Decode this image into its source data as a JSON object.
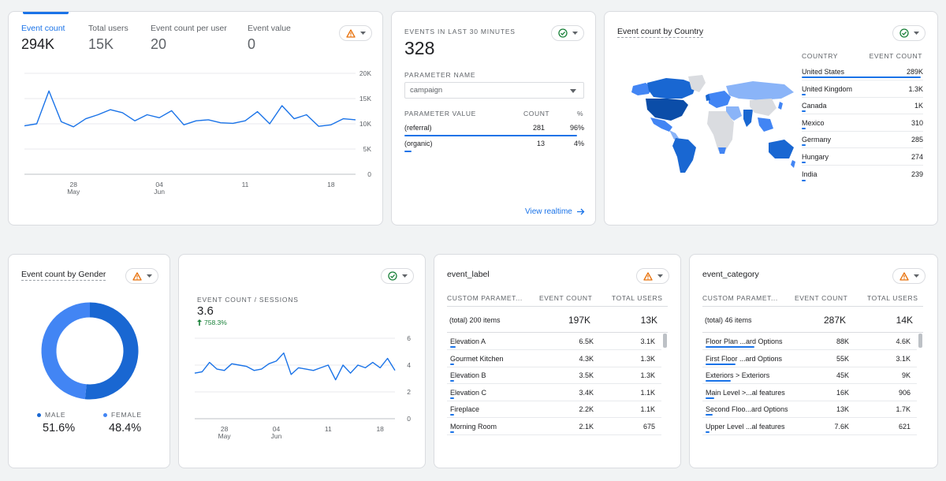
{
  "colors": {
    "accent": "#1a73e8",
    "warning": "#e8710a",
    "ok": "#188038",
    "map_dark": "#1967d2",
    "map_mid": "#4285f4",
    "map_light": "#8ab4f8",
    "map_none": "#dadce0"
  },
  "event_card": {
    "metrics": [
      {
        "label": "Event count",
        "value": "294K"
      },
      {
        "label": "Total users",
        "value": "15K"
      },
      {
        "label": "Event count per user",
        "value": "20"
      },
      {
        "label": "Event value",
        "value": "0"
      }
    ],
    "status_icon": "warning-icon",
    "chart_data": {
      "type": "line",
      "y_ticks": [
        "20K",
        "15K",
        "10K",
        "5K",
        "0"
      ],
      "x_ticks": [
        {
          "day": "28",
          "month": "May"
        },
        {
          "day": "04",
          "month": "Jun"
        },
        {
          "day": "11",
          "month": ""
        },
        {
          "day": "18",
          "month": ""
        }
      ],
      "ylim": [
        0,
        20000
      ],
      "series": [
        {
          "values": [
            9600,
            10000,
            16500,
            10400,
            9400,
            11000,
            11800,
            12800,
            12200,
            10600,
            11800,
            11200,
            12600,
            9800,
            10600,
            10800,
            10200,
            10100,
            10600,
            12400,
            10000,
            13600,
            11000,
            11800,
            9500,
            9800,
            11000,
            10800
          ]
        }
      ]
    }
  },
  "realtime_card": {
    "label": "EVENTS IN LAST 30 MINUTES",
    "value": "328",
    "status_icon": "check-icon",
    "param_name_label": "PARAMETER NAME",
    "param_select": "campaign",
    "columns": [
      "PARAMETER VALUE",
      "COUNT",
      "%"
    ],
    "rows": [
      {
        "value": "(referral)",
        "count": "281",
        "pct": "96%",
        "fraction": 0.96
      },
      {
        "value": "(organic)",
        "count": "13",
        "pct": "4%",
        "fraction": 0.04
      }
    ],
    "link": "View realtime"
  },
  "country_card": {
    "title": "Event count by Country",
    "status_icon": "check-icon",
    "columns": [
      "COUNTRY",
      "EVENT COUNT"
    ],
    "rows": [
      {
        "name": "United States",
        "count": "289K",
        "fraction": 0.98
      },
      {
        "name": "United Kingdom",
        "count": "1.3K",
        "fraction": 0.005
      },
      {
        "name": "Canada",
        "count": "1K",
        "fraction": 0.004
      },
      {
        "name": "Mexico",
        "count": "310",
        "fraction": 0.001
      },
      {
        "name": "Germany",
        "count": "285",
        "fraction": 0.001
      },
      {
        "name": "Hungary",
        "count": "274",
        "fraction": 0.001
      },
      {
        "name": "India",
        "count": "239",
        "fraction": 0.001
      }
    ]
  },
  "gender_card": {
    "title": "Event count by Gender",
    "status_icon": "warning-icon",
    "chart_data": {
      "type": "pie",
      "slices": [
        {
          "name": "MALE",
          "value": 51.6,
          "label": "51.6%",
          "color": "#1967d2"
        },
        {
          "name": "FEMALE",
          "value": 48.4,
          "label": "48.4%",
          "color": "#4285f4"
        }
      ]
    }
  },
  "sessions_card": {
    "label": "EVENT COUNT / SESSIONS",
    "value": "3.6",
    "change": "758.3%",
    "status_icon": "check-icon",
    "chart_data": {
      "type": "line",
      "y_ticks": [
        "6",
        "4",
        "2",
        "0"
      ],
      "x_ticks": [
        {
          "day": "28",
          "month": "May"
        },
        {
          "day": "04",
          "month": "Jun"
        },
        {
          "day": "11",
          "month": ""
        },
        {
          "day": "18",
          "month": ""
        }
      ],
      "ylim": [
        0,
        6
      ],
      "series": [
        {
          "values": [
            3.4,
            3.5,
            4.2,
            3.7,
            3.6,
            4.1,
            4.0,
            3.9,
            3.6,
            3.7,
            4.1,
            4.3,
            4.9,
            3.3,
            3.8,
            3.7,
            3.6,
            3.8,
            4.0,
            2.9,
            4.0,
            3.4,
            4.0,
            3.8,
            4.2,
            3.8,
            4.5,
            3.6
          ]
        }
      ]
    }
  },
  "label_card": {
    "title": "event_label",
    "status_icon": "warning-icon",
    "columns": [
      "CUSTOM PARAMET...",
      "EVENT COUNT",
      "TOTAL USERS"
    ],
    "total": {
      "label": "(total) 200 items",
      "count": "197K",
      "users": "13K"
    },
    "rows": [
      {
        "name": "Elevation A",
        "count": "6.5K",
        "users": "3.1K",
        "fraction": 0.033
      },
      {
        "name": "Gourmet Kitchen",
        "count": "4.3K",
        "users": "1.3K",
        "fraction": 0.022
      },
      {
        "name": "Elevation B",
        "count": "3.5K",
        "users": "1.3K",
        "fraction": 0.018
      },
      {
        "name": "Elevation C",
        "count": "3.4K",
        "users": "1.1K",
        "fraction": 0.017
      },
      {
        "name": "Fireplace",
        "count": "2.2K",
        "users": "1.1K",
        "fraction": 0.011
      },
      {
        "name": "Morning Room",
        "count": "2.1K",
        "users": "675",
        "fraction": 0.011
      }
    ]
  },
  "category_card": {
    "title": "event_category",
    "status_icon": "warning-icon",
    "columns": [
      "CUSTOM PARAMET...",
      "EVENT COUNT",
      "TOTAL USERS"
    ],
    "total": {
      "label": "(total) 46 items",
      "count": "287K",
      "users": "14K"
    },
    "rows": [
      {
        "name": "Floor Plan ...ard Options",
        "count": "88K",
        "users": "4.6K",
        "fraction": 0.31
      },
      {
        "name": "First Floor ...ard Options",
        "count": "55K",
        "users": "3.1K",
        "fraction": 0.19
      },
      {
        "name": "Exteriors > Exteriors",
        "count": "45K",
        "users": "9K",
        "fraction": 0.16
      },
      {
        "name": "Main Level >...al features",
        "count": "16K",
        "users": "906",
        "fraction": 0.056
      },
      {
        "name": "Second Floo...ard Options",
        "count": "13K",
        "users": "1.7K",
        "fraction": 0.045
      },
      {
        "name": "Upper Level ...al features",
        "count": "7.6K",
        "users": "621",
        "fraction": 0.026
      }
    ]
  }
}
